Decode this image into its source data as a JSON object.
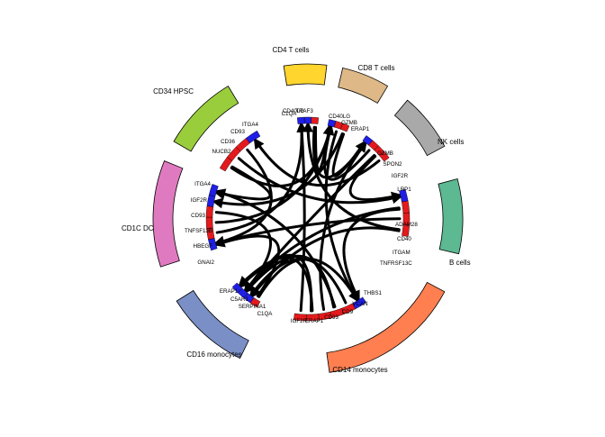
{
  "diagram": {
    "type": "chord-interaction-diagram",
    "colors": {
      "ligand_segment": "#e41a1c",
      "receptor_segment": "#1f1fe6",
      "link": "#000000"
    },
    "cell_types": [
      {
        "name": "CD4 T cells",
        "color": "#ffd52e"
      },
      {
        "name": "CD8 T cells",
        "color": "#deb887"
      },
      {
        "name": "NK cells",
        "color": "#a9a9a9"
      },
      {
        "name": "B cells",
        "color": "#5cb991"
      },
      {
        "name": "CD14 monocytes",
        "color": "#ff7f50"
      },
      {
        "name": "CD16 monocytes",
        "color": "#7a8fc6"
      },
      {
        "name": "CD1C DC",
        "color": "#e07ac0"
      },
      {
        "name": "CD34 HPSC",
        "color": "#9acd3c"
      }
    ],
    "gene_groups": [
      {
        "cell": "CD4 T cells",
        "genes": [
          "C1QA",
          "CD40LG",
          "TRAF3"
        ]
      },
      {
        "cell": "CD8 T cells",
        "genes": [
          "CD40LG",
          "GZMB",
          "ERAP1"
        ]
      },
      {
        "cell": "NK cells",
        "genes": [
          "GZMB",
          "SPON2",
          "IGF2R",
          "LRP1"
        ]
      },
      {
        "cell": "B cells",
        "genes": [
          "ADAM28",
          "CD40",
          "ITGAM",
          "TNFRSF13C"
        ]
      },
      {
        "cell": "CD14 monocytes",
        "genes": [
          "THBS1",
          "VCAN",
          "CD9",
          "CD93",
          "ERAP1",
          "IGF2R"
        ]
      },
      {
        "cell": "CD16 monocytes",
        "genes": [
          "ERAP1",
          "C5AR1",
          "SERPINA1",
          "C1QA"
        ]
      },
      {
        "cell": "CD1C DC",
        "genes": [
          "ITGA4",
          "IGF2R",
          "CD93",
          "TNFSF13B",
          "HBEGF",
          "GNAI2"
        ]
      },
      {
        "cell": "CD34 HPSC",
        "genes": [
          "ITGA4",
          "CD93",
          "CD36",
          "NUCB2"
        ]
      }
    ]
  }
}
